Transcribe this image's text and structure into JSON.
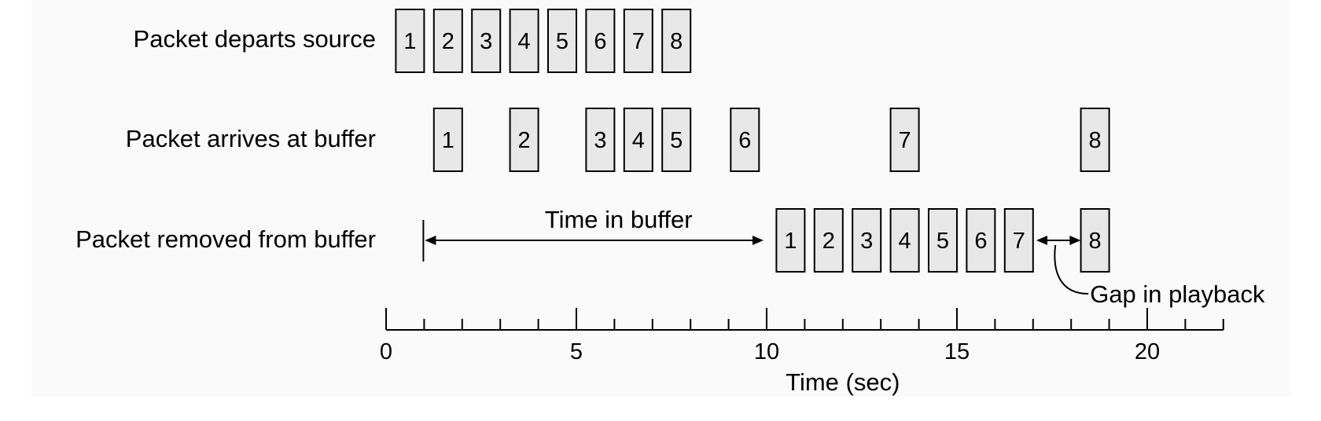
{
  "rows": [
    {
      "id": "departs",
      "label": "Packet departs source",
      "packets": [
        {
          "n": "1",
          "t": 1
        },
        {
          "n": "2",
          "t": 2
        },
        {
          "n": "3",
          "t": 3
        },
        {
          "n": "4",
          "t": 4
        },
        {
          "n": "5",
          "t": 5
        },
        {
          "n": "6",
          "t": 6
        },
        {
          "n": "7",
          "t": 7
        },
        {
          "n": "8",
          "t": 8
        }
      ]
    },
    {
      "id": "arrives",
      "label": "Packet arrives at buffer",
      "packets": [
        {
          "n": "1",
          "t": 2
        },
        {
          "n": "2",
          "t": 4
        },
        {
          "n": "3",
          "t": 6
        },
        {
          "n": "4",
          "t": 7
        },
        {
          "n": "5",
          "t": 8
        },
        {
          "n": "6",
          "t": 9.8
        },
        {
          "n": "7",
          "t": 14
        },
        {
          "n": "8",
          "t": 19
        }
      ]
    },
    {
      "id": "removed",
      "label": "Packet removed from buffer",
      "packets": [
        {
          "n": "1",
          "t": 11
        },
        {
          "n": "2",
          "t": 12
        },
        {
          "n": "3",
          "t": 13
        },
        {
          "n": "4",
          "t": 14
        },
        {
          "n": "5",
          "t": 15
        },
        {
          "n": "6",
          "t": 16
        },
        {
          "n": "7",
          "t": 17
        },
        {
          "n": "8",
          "t": 19
        }
      ]
    }
  ],
  "annotations": {
    "time_in_buffer": {
      "label": "Time in buffer",
      "from": 1,
      "to": 10
    },
    "gap": {
      "label": "Gap in playback",
      "from": 17.5,
      "to": 18.5
    }
  },
  "axis": {
    "title": "Time (sec)",
    "min": 0,
    "max": 22,
    "minor_step": 1,
    "major_ticks": [
      {
        "value": 0,
        "label": "0"
      },
      {
        "value": 5,
        "label": "5"
      },
      {
        "value": 10,
        "label": "10"
      },
      {
        "value": 15,
        "label": "15"
      },
      {
        "value": 20,
        "label": "20"
      }
    ]
  },
  "colors": {
    "box_fill": "#e8e8e8",
    "stroke": "#000000",
    "background": "#ffffff"
  }
}
